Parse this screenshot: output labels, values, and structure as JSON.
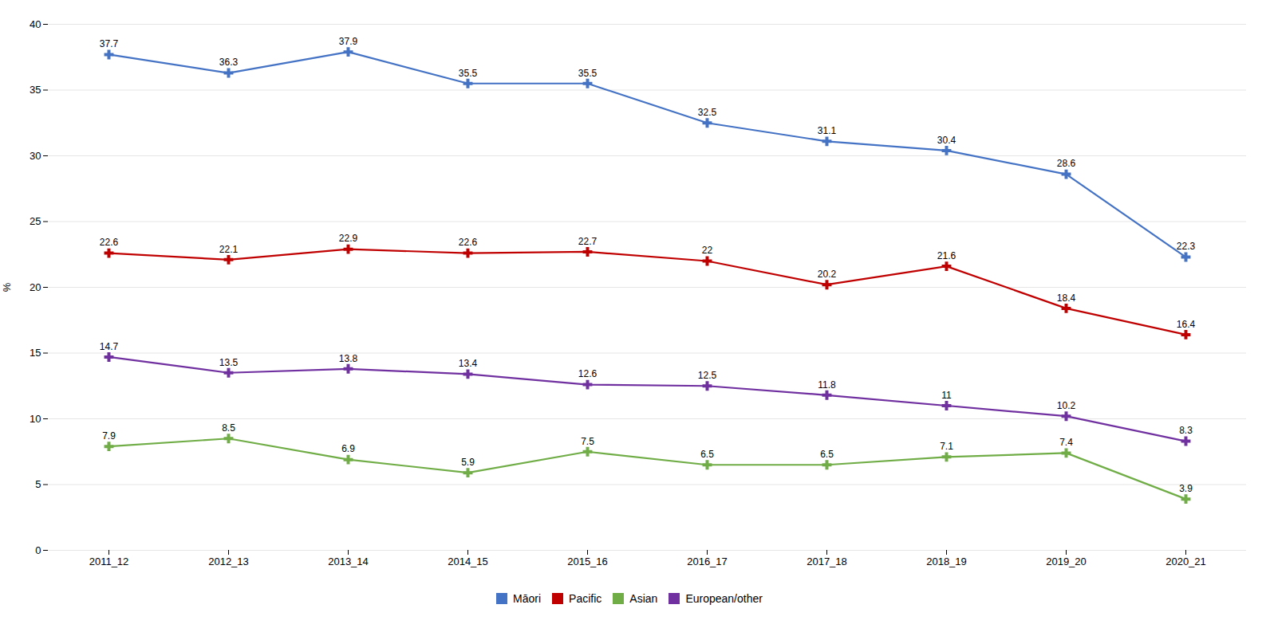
{
  "chart_data": {
    "type": "line",
    "categories": [
      "2011_12",
      "2012_13",
      "2013_14",
      "2014_15",
      "2015_16",
      "2016_17",
      "2017_18",
      "2018_19",
      "2019_20",
      "2020_21"
    ],
    "series": [
      {
        "name": "Māori",
        "color": "#4472C4",
        "marker": "plus",
        "values": [
          37.7,
          36.3,
          37.9,
          35.5,
          35.5,
          32.5,
          31.1,
          30.4,
          28.6,
          22.3
        ]
      },
      {
        "name": "Pacific",
        "color": "#C00000",
        "marker": "plus",
        "values": [
          22.6,
          22.1,
          22.9,
          22.6,
          22.7,
          22.0,
          20.2,
          21.6,
          18.4,
          16.4
        ]
      },
      {
        "name": "Asian",
        "color": "#70AD47",
        "marker": "plus",
        "values": [
          7.9,
          8.5,
          6.9,
          5.9,
          7.5,
          6.5,
          6.5,
          7.1,
          7.4,
          3.9
        ]
      },
      {
        "name": "European/other",
        "color": "#7030A0",
        "marker": "plus",
        "values": [
          14.7,
          13.5,
          13.8,
          13.4,
          12.6,
          12.5,
          11.8,
          11.0,
          10.2,
          8.3
        ]
      }
    ],
    "y_label": "%",
    "ylim": [
      0,
      40
    ],
    "yticks": [
      0,
      5,
      10,
      15,
      20,
      25,
      30,
      35,
      40
    ],
    "grid": true,
    "legend": "bottom",
    "data_labels": true
  }
}
